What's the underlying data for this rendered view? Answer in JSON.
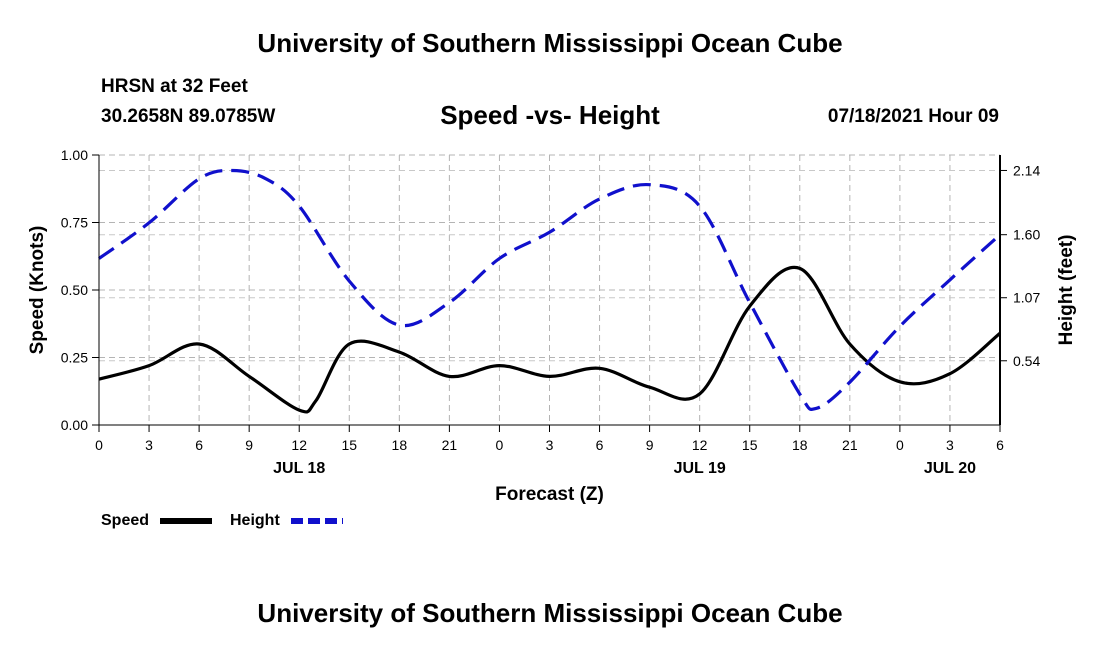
{
  "header": {
    "title_top": "University of Southern Mississippi Ocean Cube",
    "station": "HRSN at 32 Feet",
    "coords": "30.2658N  89.0785W",
    "run_time": "07/18/2021 Hour 09",
    "title_bottom": "University of Southern Mississippi Ocean Cube"
  },
  "chart_data": {
    "type": "line",
    "title": "Speed -vs- Height",
    "xlabel": "Forecast (Z)",
    "ylabel": "Speed (Knots)",
    "ylabel_right": "Height (feet)",
    "xlim": [
      0,
      54
    ],
    "ylim": [
      0,
      1.0
    ],
    "ylim_right": [
      0.0,
      2.27
    ],
    "grid": true,
    "x_ticks": [
      0,
      3,
      6,
      9,
      12,
      15,
      18,
      21,
      24,
      27,
      30,
      33,
      36,
      39,
      42,
      45,
      48,
      51,
      54
    ],
    "x_tick_labels": [
      "0",
      "3",
      "6",
      "9",
      "12",
      "15",
      "18",
      "21",
      "0",
      "3",
      "6",
      "9",
      "12",
      "15",
      "18",
      "21",
      "0",
      "3",
      "6"
    ],
    "date_labels": [
      {
        "x": 12,
        "label": "JUL 18"
      },
      {
        "x": 36,
        "label": "JUL 19"
      },
      {
        "x": 51,
        "label": "JUL 20"
      }
    ],
    "y_ticks": [
      0.0,
      0.25,
      0.5,
      0.75,
      1.0
    ],
    "y_tick_labels": [
      "0.00",
      "0.25",
      "0.50",
      "0.75",
      "1.00"
    ],
    "y_right_ticks": [
      0.54,
      1.07,
      1.6,
      2.14
    ],
    "y_right_tick_labels": [
      "0.54",
      "1.07",
      "1.60",
      "2.14"
    ],
    "legend": {
      "position": "bottom-left",
      "entries": [
        "Speed",
        "Height"
      ]
    },
    "series": [
      {
        "name": "Speed",
        "axis": "left",
        "color": "#000000",
        "dash": "solid",
        "x": [
          0,
          3,
          6,
          9,
          12,
          13,
          15,
          18,
          21,
          24,
          27,
          30,
          33,
          36,
          39,
          42,
          45,
          48,
          51,
          54
        ],
        "values": [
          0.17,
          0.22,
          0.3,
          0.18,
          0.055,
          0.09,
          0.3,
          0.27,
          0.18,
          0.22,
          0.18,
          0.21,
          0.14,
          0.115,
          0.44,
          0.58,
          0.3,
          0.16,
          0.19,
          0.34
        ]
      },
      {
        "name": "Height",
        "axis": "right",
        "color": "#1010cc",
        "dash": "dashed",
        "x": [
          0,
          3,
          6,
          8,
          10,
          12,
          15,
          18,
          21,
          24,
          27,
          30,
          33,
          36,
          39,
          42,
          43,
          45,
          48,
          51,
          54
        ],
        "values": [
          1.4,
          1.7,
          2.07,
          2.14,
          2.07,
          1.84,
          1.21,
          0.84,
          1.03,
          1.4,
          1.62,
          1.9,
          2.02,
          1.84,
          1.03,
          0.26,
          0.14,
          0.36,
          0.83,
          1.22,
          1.6
        ]
      }
    ]
  }
}
